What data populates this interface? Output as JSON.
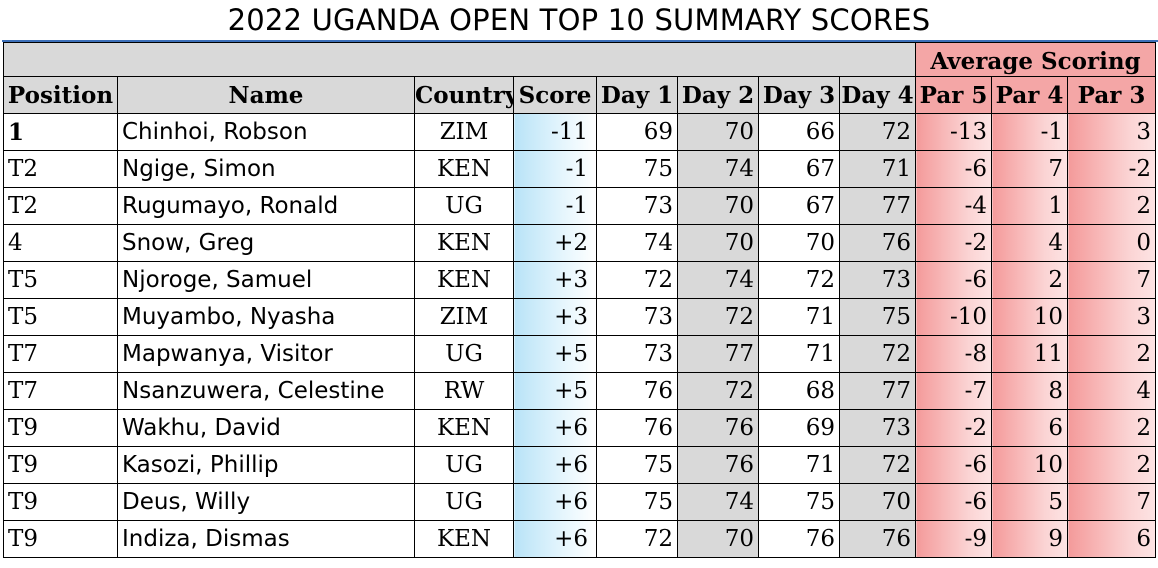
{
  "title": "2022 UGANDA OPEN TOP 10 SUMMARY SCORES",
  "group_header": "Average Scoring",
  "columns": {
    "position": "Position",
    "name": "Name",
    "country": "Country",
    "score": "Score",
    "day1": "Day 1",
    "day2": "Day 2",
    "day3": "Day 3",
    "day4": "Day 4",
    "par5": "Par 5",
    "par4": "Par 4",
    "par3": "Par 3"
  },
  "rows": [
    {
      "position": "1",
      "name": "Chinhoi, Robson",
      "country": "ZIM",
      "score": "-11",
      "day1": "69",
      "day2": "70",
      "day3": "66",
      "day4": "72",
      "par5": "-13",
      "par4": "-1",
      "par3": "3"
    },
    {
      "position": "T2",
      "name": "Ngige, Simon",
      "country": "KEN",
      "score": "-1",
      "day1": "75",
      "day2": "74",
      "day3": "67",
      "day4": "71",
      "par5": "-6",
      "par4": "7",
      "par3": "-2"
    },
    {
      "position": "T2",
      "name": "Rugumayo, Ronald",
      "country": "UG",
      "score": "-1",
      "day1": "73",
      "day2": "70",
      "day3": "67",
      "day4": "77",
      "par5": "-4",
      "par4": "1",
      "par3": "2"
    },
    {
      "position": "4",
      "name": "Snow, Greg",
      "country": "KEN",
      "score": "+2",
      "day1": "74",
      "day2": "70",
      "day3": "70",
      "day4": "76",
      "par5": "-2",
      "par4": "4",
      "par3": "0"
    },
    {
      "position": "T5",
      "name": "Njoroge, Samuel",
      "country": "KEN",
      "score": "+3",
      "day1": "72",
      "day2": "74",
      "day3": "72",
      "day4": "73",
      "par5": "-6",
      "par4": "2",
      "par3": "7"
    },
    {
      "position": "T5",
      "name": "Muyambo, Nyasha",
      "country": "ZIM",
      "score": "+3",
      "day1": "73",
      "day2": "72",
      "day3": "71",
      "day4": "75",
      "par5": "-10",
      "par4": "10",
      "par3": "3"
    },
    {
      "position": "T7",
      "name": "Mapwanya, Visitor",
      "country": "UG",
      "score": "+5",
      "day1": "73",
      "day2": "77",
      "day3": "71",
      "day4": "72",
      "par5": "-8",
      "par4": "11",
      "par3": "2"
    },
    {
      "position": "T7",
      "name": "Nsanzuwera, Celestine",
      "country": "RW",
      "score": "+5",
      "day1": "76",
      "day2": "72",
      "day3": "68",
      "day4": "77",
      "par5": "-7",
      "par4": "8",
      "par3": "4"
    },
    {
      "position": "T9",
      "name": "Wakhu, David",
      "country": "KEN",
      "score": "+6",
      "day1": "76",
      "day2": "76",
      "day3": "69",
      "day4": "73",
      "par5": "-2",
      "par4": "6",
      "par3": "2"
    },
    {
      "position": "T9",
      "name": "Kasozi, Phillip",
      "country": "UG",
      "score": "+6",
      "day1": "75",
      "day2": "76",
      "day3": "71",
      "day4": "72",
      "par5": "-6",
      "par4": "10",
      "par3": "2"
    },
    {
      "position": "T9",
      "name": "Deus, Willy",
      "country": "UG",
      "score": "+6",
      "day1": "75",
      "day2": "74",
      "day3": "75",
      "day4": "70",
      "par5": "-6",
      "par4": "5",
      "par3": "7"
    },
    {
      "position": "T9",
      "name": "Indiza, Dismas",
      "country": "KEN",
      "score": "+6",
      "day1": "72",
      "day2": "70",
      "day3": "76",
      "day4": "76",
      "par5": "-9",
      "par4": "9",
      "par3": "6"
    }
  ]
}
